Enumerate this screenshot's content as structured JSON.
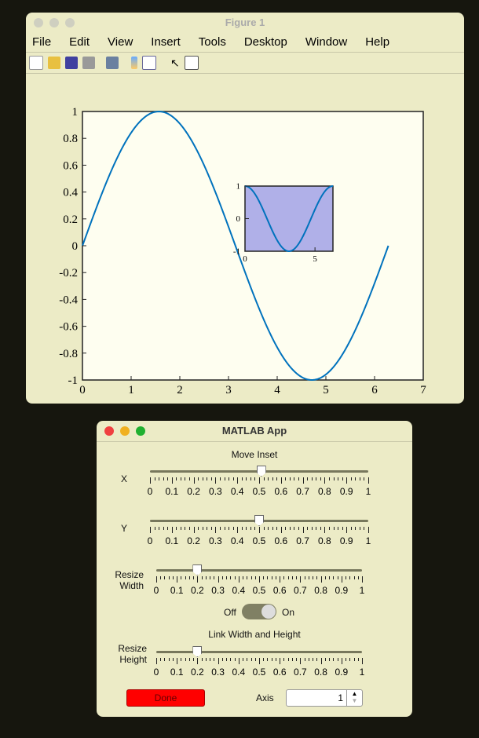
{
  "figure": {
    "title": "Figure 1",
    "menu": [
      "File",
      "Edit",
      "View",
      "Insert",
      "Tools",
      "Desktop",
      "Window",
      "Help"
    ],
    "toolbar_icons": [
      "new-file-icon",
      "open-folder-icon",
      "save-icon",
      "print-icon",
      "link-plot-icon",
      "colorbar-icon",
      "legend-icon",
      "pointer-icon",
      "property-inspector-icon"
    ]
  },
  "chart_data": [
    {
      "type": "line",
      "function": "sin(x)",
      "x_range": [
        0,
        6.2832
      ],
      "xlim": [
        0,
        7
      ],
      "ylim": [
        -1,
        1
      ],
      "xticks": [
        "0",
        "1",
        "2",
        "3",
        "4",
        "5",
        "6",
        "7"
      ],
      "yticks": [
        "1",
        "0.8",
        "0.6",
        "0.4",
        "0.2",
        "0",
        "-0.2",
        "-0.4",
        "-0.6",
        "-0.8",
        "-1"
      ],
      "line_color": "#0072bd",
      "grid": false
    },
    {
      "type": "line",
      "function": "cos(x)",
      "x_range": [
        0,
        6.2832
      ],
      "xlim": [
        0,
        6.2832
      ],
      "ylim": [
        -1,
        1
      ],
      "xticks": [
        "0",
        "5"
      ],
      "yticks": [
        "1",
        "0",
        "-1"
      ],
      "background": "#b0b0e8",
      "line_color": "#0072bd",
      "grid": false
    }
  ],
  "app": {
    "title": "MATLAB App",
    "move_inset": "Move Inset",
    "sliders": [
      {
        "label": "X",
        "value": 0.51
      },
      {
        "label": "Y",
        "value": 0.5
      },
      {
        "label": "Resize Width",
        "value": 0.2
      },
      {
        "label": "Resize Height",
        "value": 0.2
      }
    ],
    "tick_labels": [
      "0",
      "0.1",
      "0.2",
      "0.3",
      "0.4",
      "0.5",
      "0.6",
      "0.7",
      "0.8",
      "0.9",
      "1"
    ],
    "switch": {
      "off": "Off",
      "on": "On",
      "state": "On"
    },
    "link_label": "Link Width and Height",
    "done": "Done",
    "done_color": "#ff0000",
    "axis_label": "Axis",
    "axis_value": "1"
  }
}
